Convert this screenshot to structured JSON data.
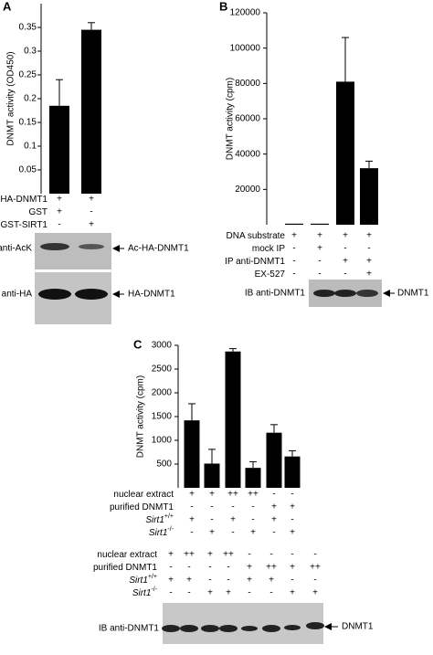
{
  "chart_data": [
    {
      "type": "bar",
      "panel": "A",
      "y_label": "DNMT activity (OD450)",
      "color": "#000000",
      "values": [
        0.185,
        0.345
      ],
      "errors": [
        0.055,
        0.015
      ],
      "ylim": [
        0,
        0.4
      ],
      "yticks": [
        0.05,
        0.1,
        0.15,
        0.2,
        0.25,
        0.3,
        0.35
      ],
      "conditions": [
        {
          "label": "HA-DNMT1",
          "signs": [
            "+",
            "+"
          ]
        },
        {
          "label": "GST",
          "signs": [
            "+",
            "-"
          ]
        },
        {
          "label": "GST-SIRT1",
          "signs": [
            "-",
            "+"
          ]
        }
      ],
      "blots": [
        {
          "label": "IB anti-AcK",
          "band": "Ac-HA-DNMT1"
        },
        {
          "label": "IB anti-HA",
          "band": "HA-DNMT1"
        }
      ]
    },
    {
      "type": "bar",
      "panel": "B",
      "y_label": "DNMT activity (cpm)",
      "color": "#000000",
      "values": [
        600,
        600,
        81000,
        32000
      ],
      "errors": [
        0,
        0,
        25000,
        4000
      ],
      "ylim": [
        0,
        120000
      ],
      "yticks": [
        20000,
        40000,
        60000,
        80000,
        100000,
        120000
      ],
      "conditions": [
        {
          "label": "DNA substrate",
          "signs": [
            "+",
            "+",
            "+",
            "+"
          ]
        },
        {
          "label": "mock IP",
          "signs": [
            "-",
            "+",
            "-",
            "-"
          ]
        },
        {
          "label": "IP anti-DNMT1",
          "signs": [
            "-",
            "-",
            "+",
            "+"
          ]
        },
        {
          "label": "EX-527",
          "signs": [
            "-",
            "-",
            "-",
            "+"
          ]
        }
      ],
      "blots": [
        {
          "label": "IB anti-DNMT1",
          "band": "DNMT1"
        }
      ]
    },
    {
      "type": "bar",
      "panel": "C",
      "y_label": "DNMT activity (cpm)",
      "color": "#000000",
      "values": [
        1420,
        510,
        2870,
        420,
        1160,
        660
      ],
      "errors": [
        350,
        300,
        60,
        130,
        170,
        120
      ],
      "ylim": [
        0,
        3000
      ],
      "yticks": [
        500,
        1000,
        1500,
        2000,
        2500,
        3000
      ],
      "conditions": [
        {
          "label": "nuclear extract",
          "signs": [
            "+",
            "+",
            "++",
            "++",
            "-",
            "-"
          ]
        },
        {
          "label": "purified DNMT1",
          "signs": [
            "-",
            "-",
            "-",
            "-",
            "+",
            "+"
          ]
        },
        {
          "label": "Sirt1",
          "sup": "+/+",
          "signs": [
            "+",
            "-",
            "+",
            "-",
            "+",
            "-"
          ]
        },
        {
          "label": "Sirt1",
          "sup": "-/-",
          "signs": [
            "-",
            "+",
            "-",
            "+",
            "-",
            "+"
          ]
        }
      ],
      "blot_conditions": [
        {
          "label": "nuclear extract",
          "signs": [
            "+",
            "++",
            "+",
            "++",
            "-",
            "-",
            "-",
            "-"
          ]
        },
        {
          "label": "purified DNMT1",
          "signs": [
            "-",
            "-",
            "-",
            "-",
            "+",
            "++",
            "+",
            "++"
          ]
        },
        {
          "label": "Sirt1",
          "sup": "+/+",
          "signs": [
            "+",
            "+",
            "-",
            "-",
            "+",
            "+",
            "-",
            "-"
          ]
        },
        {
          "label": "Sirt1",
          "sup": "-/-",
          "signs": [
            "-",
            "-",
            "+",
            "+",
            "-",
            "-",
            "+",
            "+"
          ]
        }
      ],
      "blots": [
        {
          "label": "IB anti-DNMT1",
          "band": "DNMT1"
        }
      ]
    }
  ]
}
